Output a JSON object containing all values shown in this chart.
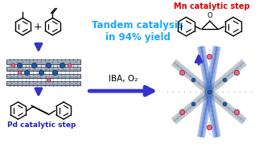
{
  "bg_color": "#ffffff",
  "title_text": "Tandem catalysis\nin 94% yield",
  "title_color": "#1aa7ff",
  "title_fontsize": 8.5,
  "mn_label": "Mn catalytic step",
  "mn_color": "#dd0000",
  "mn_fontsize": 7,
  "pd_label": "Pd catalytic step",
  "pd_color": "#2222bb",
  "pd_fontsize": 6.5,
  "iba_text": "IBA, O₂",
  "iba_fontsize": 7.5,
  "arrow_color": "#3333cc",
  "dot_blue": "#2255aa",
  "dot_pink": "#ee6688",
  "fw_gray": "#7788aa",
  "fw_blue": "#2244aa",
  "fw_dark": "#334455",
  "layer_edge": "#333344",
  "layer_fill": "#aabbcc",
  "layer_atom": "#334466",
  "layer_atom2": "#5577aa"
}
